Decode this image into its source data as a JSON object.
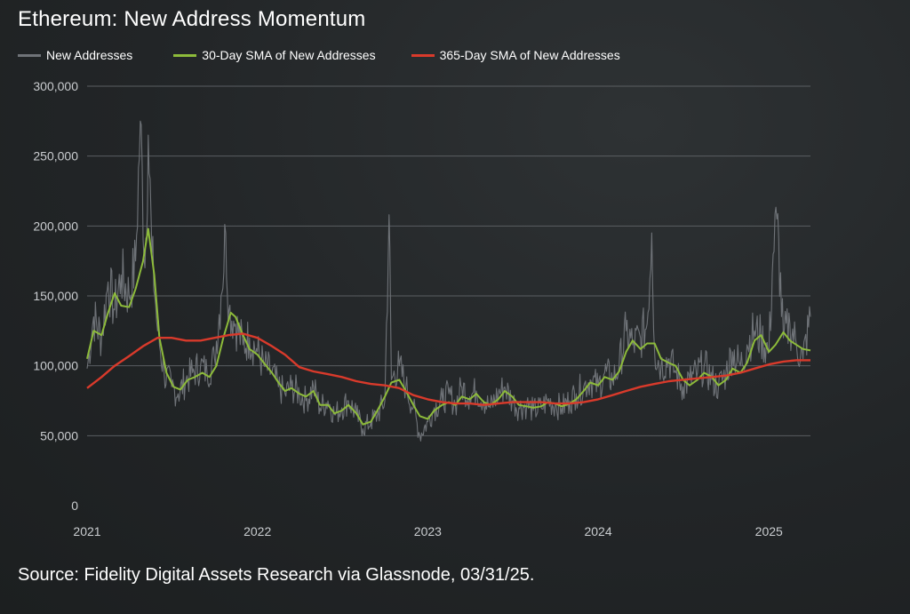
{
  "chart_data": {
    "type": "line",
    "title": "Ethereum: New Address Momentum",
    "source": "Source: Fidelity Digital Assets Research via Glassnode, 03/31/25.",
    "x_axis": {
      "range": [
        "2021-01-01",
        "2025-03-31"
      ],
      "tick_labels": [
        "2021",
        "2022",
        "2023",
        "2024",
        "2025"
      ]
    },
    "y_axis": {
      "range": [
        0,
        300000
      ],
      "tick_values": [
        0,
        50000,
        100000,
        150000,
        200000,
        250000,
        300000
      ],
      "tick_labels": [
        "0",
        "50,000",
        "100,000",
        "150,000",
        "200,000",
        "250,000",
        "300,000"
      ],
      "grid": true
    },
    "legend_position": "top-left",
    "series": [
      {
        "name": "New Addresses",
        "color": "#6f7378",
        "points": [
          [
            "2021-01-01",
            98000
          ],
          [
            "2021-01-15",
            135000
          ],
          [
            "2021-02-01",
            120000
          ],
          [
            "2021-02-15",
            160000
          ],
          [
            "2021-03-01",
            140000
          ],
          [
            "2021-03-15",
            165000
          ],
          [
            "2021-04-01",
            150000
          ],
          [
            "2021-04-15",
            175000
          ],
          [
            "2021-04-25",
            275000
          ],
          [
            "2021-05-05",
            170000
          ],
          [
            "2021-05-12",
            265000
          ],
          [
            "2021-05-20",
            180000
          ],
          [
            "2021-06-01",
            125000
          ],
          [
            "2021-06-15",
            95000
          ],
          [
            "2021-07-01",
            85000
          ],
          [
            "2021-07-15",
            80000
          ],
          [
            "2021-08-01",
            90000
          ],
          [
            "2021-08-15",
            95000
          ],
          [
            "2021-09-01",
            100000
          ],
          [
            "2021-09-15",
            95000
          ],
          [
            "2021-10-01",
            105000
          ],
          [
            "2021-10-15",
            150000
          ],
          [
            "2021-10-25",
            195000
          ],
          [
            "2021-11-01",
            140000
          ],
          [
            "2021-11-15",
            130000
          ],
          [
            "2021-12-01",
            115000
          ],
          [
            "2021-12-15",
            120000
          ],
          [
            "2022-01-01",
            110000
          ],
          [
            "2022-01-15",
            100000
          ],
          [
            "2022-02-01",
            95000
          ],
          [
            "2022-02-15",
            85000
          ],
          [
            "2022-03-01",
            80000
          ],
          [
            "2022-03-15",
            85000
          ],
          [
            "2022-04-01",
            80000
          ],
          [
            "2022-04-15",
            75000
          ],
          [
            "2022-05-01",
            85000
          ],
          [
            "2022-05-15",
            70000
          ],
          [
            "2022-06-01",
            75000
          ],
          [
            "2022-06-15",
            65000
          ],
          [
            "2022-07-01",
            70000
          ],
          [
            "2022-07-15",
            75000
          ],
          [
            "2022-08-01",
            65000
          ],
          [
            "2022-08-15",
            55000
          ],
          [
            "2022-09-01",
            60000
          ],
          [
            "2022-09-15",
            65000
          ],
          [
            "2022-10-01",
            75000
          ],
          [
            "2022-10-10",
            208000
          ],
          [
            "2022-10-15",
            90000
          ],
          [
            "2022-11-01",
            100000
          ],
          [
            "2022-11-15",
            85000
          ],
          [
            "2022-12-01",
            70000
          ],
          [
            "2022-12-15",
            50000
          ],
          [
            "2023-01-01",
            60000
          ],
          [
            "2023-01-15",
            70000
          ],
          [
            "2023-02-01",
            75000
          ],
          [
            "2023-02-15",
            80000
          ],
          [
            "2023-03-01",
            72000
          ],
          [
            "2023-03-15",
            85000
          ],
          [
            "2023-04-01",
            78000
          ],
          [
            "2023-04-15",
            82000
          ],
          [
            "2023-05-01",
            75000
          ],
          [
            "2023-05-15",
            70000
          ],
          [
            "2023-06-01",
            80000
          ],
          [
            "2023-06-15",
            85000
          ],
          [
            "2023-07-01",
            75000
          ],
          [
            "2023-07-15",
            70000
          ],
          [
            "2023-08-01",
            72000
          ],
          [
            "2023-08-15",
            68000
          ],
          [
            "2023-09-01",
            70000
          ],
          [
            "2023-09-15",
            75000
          ],
          [
            "2023-10-01",
            72000
          ],
          [
            "2023-10-15",
            70000
          ],
          [
            "2023-11-01",
            75000
          ],
          [
            "2023-11-15",
            80000
          ],
          [
            "2023-12-01",
            85000
          ],
          [
            "2023-12-15",
            90000
          ],
          [
            "2024-01-01",
            85000
          ],
          [
            "2024-01-15",
            95000
          ],
          [
            "2024-02-01",
            90000
          ],
          [
            "2024-02-15",
            100000
          ],
          [
            "2024-03-01",
            125000
          ],
          [
            "2024-03-15",
            115000
          ],
          [
            "2024-04-01",
            120000
          ],
          [
            "2024-04-15",
            130000
          ],
          [
            "2024-04-25",
            195000
          ],
          [
            "2024-05-01",
            110000
          ],
          [
            "2024-05-15",
            100000
          ],
          [
            "2024-06-01",
            105000
          ],
          [
            "2024-06-15",
            95000
          ],
          [
            "2024-07-01",
            85000
          ],
          [
            "2024-07-15",
            90000
          ],
          [
            "2024-08-01",
            95000
          ],
          [
            "2024-08-15",
            100000
          ],
          [
            "2024-09-01",
            90000
          ],
          [
            "2024-09-15",
            85000
          ],
          [
            "2024-10-01",
            95000
          ],
          [
            "2024-10-15",
            110000
          ],
          [
            "2024-11-01",
            100000
          ],
          [
            "2024-11-15",
            115000
          ],
          [
            "2024-12-01",
            125000
          ],
          [
            "2024-12-15",
            120000
          ],
          [
            "2025-01-01",
            110000
          ],
          [
            "2025-01-10",
            180000
          ],
          [
            "2025-01-18",
            205000
          ],
          [
            "2025-02-01",
            120000
          ],
          [
            "2025-02-15",
            130000
          ],
          [
            "2025-03-01",
            115000
          ],
          [
            "2025-03-15",
            105000
          ],
          [
            "2025-03-31",
            135000
          ]
        ]
      },
      {
        "name": "30-Day SMA of New Addresses",
        "color": "#8dbb3a",
        "points": [
          [
            "2021-01-01",
            105000
          ],
          [
            "2021-01-15",
            125000
          ],
          [
            "2021-02-01",
            122000
          ],
          [
            "2021-02-15",
            138000
          ],
          [
            "2021-03-01",
            152000
          ],
          [
            "2021-03-15",
            143000
          ],
          [
            "2021-04-01",
            142000
          ],
          [
            "2021-04-15",
            155000
          ],
          [
            "2021-05-01",
            175000
          ],
          [
            "2021-05-12",
            198000
          ],
          [
            "2021-05-25",
            165000
          ],
          [
            "2021-06-05",
            120000
          ],
          [
            "2021-06-20",
            95000
          ],
          [
            "2021-07-05",
            85000
          ],
          [
            "2021-07-20",
            83000
          ],
          [
            "2021-08-05",
            90000
          ],
          [
            "2021-08-20",
            92000
          ],
          [
            "2021-09-05",
            95000
          ],
          [
            "2021-09-20",
            92000
          ],
          [
            "2021-10-05",
            100000
          ],
          [
            "2021-10-20",
            120000
          ],
          [
            "2021-11-05",
            138000
          ],
          [
            "2021-11-15",
            135000
          ],
          [
            "2021-12-01",
            122000
          ],
          [
            "2021-12-15",
            112000
          ],
          [
            "2022-01-01",
            108000
          ],
          [
            "2022-01-15",
            102000
          ],
          [
            "2022-02-01",
            95000
          ],
          [
            "2022-02-15",
            88000
          ],
          [
            "2022-03-01",
            82000
          ],
          [
            "2022-03-15",
            84000
          ],
          [
            "2022-04-01",
            80000
          ],
          [
            "2022-04-15",
            78000
          ],
          [
            "2022-05-01",
            82000
          ],
          [
            "2022-05-15",
            72000
          ],
          [
            "2022-06-01",
            72000
          ],
          [
            "2022-06-15",
            66000
          ],
          [
            "2022-07-01",
            68000
          ],
          [
            "2022-07-15",
            72000
          ],
          [
            "2022-08-01",
            66000
          ],
          [
            "2022-08-15",
            58000
          ],
          [
            "2022-09-01",
            60000
          ],
          [
            "2022-09-15",
            68000
          ],
          [
            "2022-10-01",
            78000
          ],
          [
            "2022-10-15",
            88000
          ],
          [
            "2022-11-01",
            90000
          ],
          [
            "2022-11-15",
            82000
          ],
          [
            "2022-12-01",
            72000
          ],
          [
            "2022-12-15",
            64000
          ],
          [
            "2023-01-01",
            62000
          ],
          [
            "2023-01-15",
            68000
          ],
          [
            "2023-02-01",
            72000
          ],
          [
            "2023-02-15",
            74000
          ],
          [
            "2023-03-01",
            72000
          ],
          [
            "2023-03-15",
            78000
          ],
          [
            "2023-04-01",
            76000
          ],
          [
            "2023-04-15",
            80000
          ],
          [
            "2023-05-01",
            74000
          ],
          [
            "2023-05-15",
            72000
          ],
          [
            "2023-06-01",
            76000
          ],
          [
            "2023-06-15",
            82000
          ],
          [
            "2023-07-01",
            78000
          ],
          [
            "2023-07-15",
            72000
          ],
          [
            "2023-08-01",
            71000
          ],
          [
            "2023-08-15",
            70000
          ],
          [
            "2023-09-01",
            71000
          ],
          [
            "2023-09-15",
            74000
          ],
          [
            "2023-10-01",
            73000
          ],
          [
            "2023-10-15",
            71000
          ],
          [
            "2023-11-01",
            73000
          ],
          [
            "2023-11-15",
            76000
          ],
          [
            "2023-12-01",
            82000
          ],
          [
            "2023-12-15",
            88000
          ],
          [
            "2024-01-01",
            86000
          ],
          [
            "2024-01-15",
            92000
          ],
          [
            "2024-02-01",
            90000
          ],
          [
            "2024-02-15",
            96000
          ],
          [
            "2024-03-01",
            110000
          ],
          [
            "2024-03-15",
            118000
          ],
          [
            "2024-04-01",
            112000
          ],
          [
            "2024-04-15",
            116000
          ],
          [
            "2024-05-01",
            116000
          ],
          [
            "2024-05-15",
            105000
          ],
          [
            "2024-06-01",
            102000
          ],
          [
            "2024-06-15",
            100000
          ],
          [
            "2024-07-01",
            90000
          ],
          [
            "2024-07-15",
            86000
          ],
          [
            "2024-08-01",
            90000
          ],
          [
            "2024-08-15",
            95000
          ],
          [
            "2024-09-01",
            92000
          ],
          [
            "2024-09-15",
            86000
          ],
          [
            "2024-10-01",
            90000
          ],
          [
            "2024-10-15",
            98000
          ],
          [
            "2024-11-01",
            95000
          ],
          [
            "2024-11-15",
            102000
          ],
          [
            "2024-12-01",
            118000
          ],
          [
            "2024-12-15",
            122000
          ],
          [
            "2025-01-01",
            110000
          ],
          [
            "2025-01-15",
            115000
          ],
          [
            "2025-02-01",
            124000
          ],
          [
            "2025-02-15",
            118000
          ],
          [
            "2025-03-01",
            115000
          ],
          [
            "2025-03-15",
            112000
          ],
          [
            "2025-03-31",
            111000
          ]
        ]
      },
      {
        "name": "365-Day SMA of New Addresses",
        "color": "#d93a2b",
        "points": [
          [
            "2021-01-01",
            84000
          ],
          [
            "2021-02-01",
            92000
          ],
          [
            "2021-03-01",
            100000
          ],
          [
            "2021-04-01",
            107000
          ],
          [
            "2021-05-01",
            114000
          ],
          [
            "2021-06-01",
            120000
          ],
          [
            "2021-07-01",
            120000
          ],
          [
            "2021-08-01",
            118000
          ],
          [
            "2021-09-01",
            118000
          ],
          [
            "2021-10-01",
            120000
          ],
          [
            "2021-11-01",
            122000
          ],
          [
            "2021-12-01",
            123000
          ],
          [
            "2022-01-01",
            120000
          ],
          [
            "2022-02-01",
            114000
          ],
          [
            "2022-03-01",
            108000
          ],
          [
            "2022-04-01",
            99000
          ],
          [
            "2022-05-01",
            96000
          ],
          [
            "2022-06-01",
            94000
          ],
          [
            "2022-07-01",
            92000
          ],
          [
            "2022-08-01",
            89000
          ],
          [
            "2022-09-01",
            87000
          ],
          [
            "2022-10-01",
            86000
          ],
          [
            "2022-11-01",
            84000
          ],
          [
            "2022-12-01",
            79000
          ],
          [
            "2023-01-01",
            76000
          ],
          [
            "2023-02-01",
            74000
          ],
          [
            "2023-03-01",
            73000
          ],
          [
            "2023-04-01",
            73000
          ],
          [
            "2023-05-01",
            72000
          ],
          [
            "2023-06-01",
            73000
          ],
          [
            "2023-07-01",
            74000
          ],
          [
            "2023-08-01",
            74000
          ],
          [
            "2023-09-01",
            74000
          ],
          [
            "2023-10-01",
            73000
          ],
          [
            "2023-11-01",
            73000
          ],
          [
            "2023-12-01",
            74000
          ],
          [
            "2024-01-01",
            76000
          ],
          [
            "2024-02-01",
            79000
          ],
          [
            "2024-03-01",
            82000
          ],
          [
            "2024-04-01",
            85000
          ],
          [
            "2024-05-01",
            87000
          ],
          [
            "2024-06-01",
            89000
          ],
          [
            "2024-07-01",
            90000
          ],
          [
            "2024-08-01",
            91000
          ],
          [
            "2024-09-01",
            92000
          ],
          [
            "2024-10-01",
            93000
          ],
          [
            "2024-11-01",
            95000
          ],
          [
            "2024-12-01",
            98000
          ],
          [
            "2025-01-01",
            101000
          ],
          [
            "2025-02-01",
            103000
          ],
          [
            "2025-03-01",
            104000
          ],
          [
            "2025-03-31",
            104000
          ]
        ]
      }
    ]
  }
}
